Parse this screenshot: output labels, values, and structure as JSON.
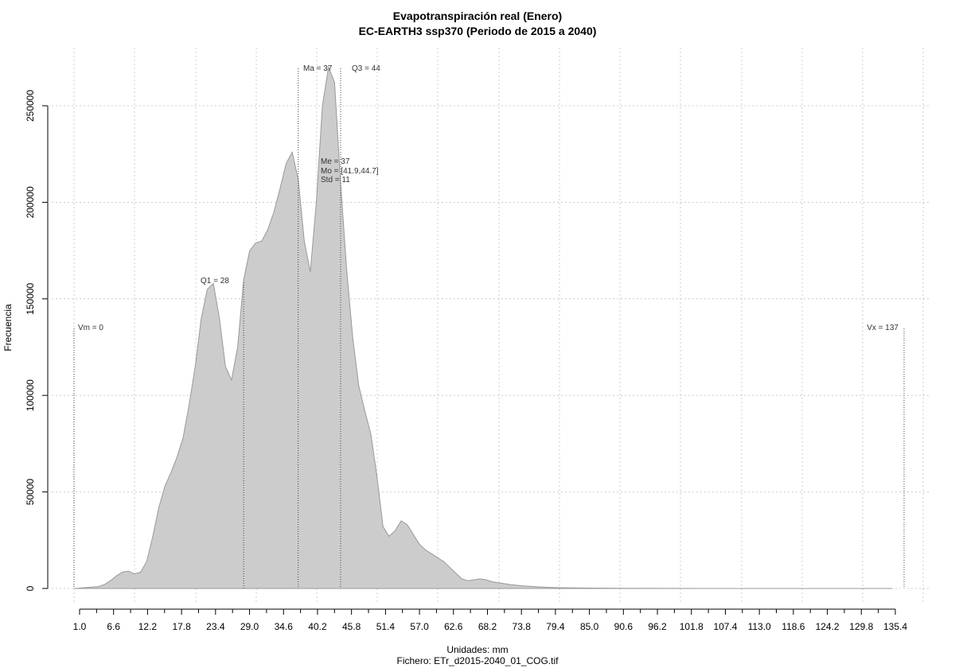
{
  "chart_data": {
    "type": "area",
    "title": "Evapotranspiración real (Enero)",
    "subtitle": "EC-EARTH3 ssp370 (Periodo de 2015 a 2040)",
    "xlabel": "Unidades: mm",
    "caption": "Fichero: ETr_d2015-2040_01_COG.tif",
    "ylabel": "Frecuencia",
    "xlim": [
      1.0,
      135.4
    ],
    "ylim": [
      0,
      275000
    ],
    "xticks": [
      "1.0",
      "6.6",
      "12.2",
      "17.8",
      "23.4",
      "29.0",
      "34.6",
      "40.2",
      "45.8",
      "51.4",
      "57.0",
      "62.6",
      "68.2",
      "73.8",
      "79.4",
      "85.0",
      "90.6",
      "96.2",
      "101.8",
      "107.4",
      "113.0",
      "118.6",
      "124.2",
      "129.8",
      "135.4"
    ],
    "yticks": [
      "0",
      "50000",
      "100000",
      "150000",
      "200000",
      "250000"
    ],
    "grid": true,
    "x": [
      0,
      1,
      2,
      3,
      4,
      5,
      6,
      7,
      8,
      9,
      10,
      11,
      12,
      13,
      14,
      15,
      16,
      17,
      18,
      19,
      20,
      21,
      22,
      23,
      24,
      25,
      26,
      27,
      28,
      29,
      30,
      31,
      32,
      33,
      34,
      35,
      36,
      37,
      38,
      39,
      40,
      41,
      42,
      43,
      44,
      45,
      46,
      47,
      48,
      49,
      50,
      51,
      52,
      53,
      54,
      55,
      56,
      57,
      58,
      59,
      60,
      61,
      62,
      63,
      64,
      65,
      66,
      67,
      68,
      69,
      70,
      71,
      72,
      73,
      74,
      75,
      76,
      77,
      78,
      79,
      80,
      85,
      90,
      100,
      110,
      120,
      130,
      135
    ],
    "values": [
      0,
      200,
      500,
      700,
      1000,
      2000,
      4000,
      6500,
      8500,
      9000,
      7500,
      8500,
      14000,
      27000,
      42000,
      53000,
      60000,
      68000,
      78000,
      95000,
      115000,
      140000,
      155000,
      158000,
      140000,
      115000,
      108000,
      125000,
      160000,
      175000,
      179000,
      180000,
      186000,
      195000,
      207000,
      220000,
      226000,
      212000,
      180000,
      164000,
      200000,
      250000,
      270000,
      262000,
      210000,
      165000,
      130000,
      105000,
      92000,
      80000,
      58000,
      32000,
      27000,
      30000,
      35000,
      33000,
      28000,
      23000,
      20000,
      18000,
      16000,
      14000,
      11000,
      8000,
      5000,
      4000,
      4500,
      5000,
      4500,
      3500,
      3000,
      2500,
      2000,
      1700,
      1400,
      1200,
      1000,
      800,
      600,
      500,
      400,
      200,
      100,
      50,
      20,
      10,
      5,
      0
    ],
    "annotations": {
      "vm": {
        "x": 0,
        "label": "Vm = 0"
      },
      "q1": {
        "x": 28,
        "label": "Q1 = 28"
      },
      "ma": {
        "x": 37,
        "label": "Ma = 37"
      },
      "q3": {
        "x": 44,
        "label": "Q3 = 44"
      },
      "vx": {
        "x": 137,
        "label": "Vx = 137"
      },
      "me": "Me = 37",
      "mo": "Mo = [41.9,44.7]",
      "std": "Std = 11"
    },
    "fill_color": "#cccccc",
    "line_color": "#999999",
    "grid_color": "#cccccc"
  }
}
